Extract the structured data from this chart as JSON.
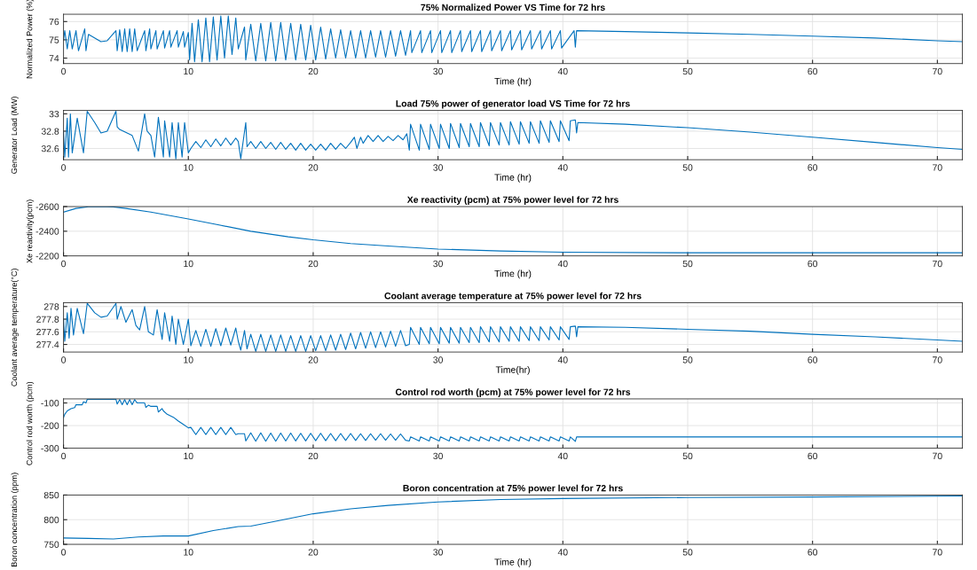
{
  "chart_data": [
    {
      "type": "line",
      "title": "75% Normalized Power VS Time for 72 hrs",
      "xlabel": "Time (hr)",
      "ylabel": "Normalized Power (%)",
      "xlim": [
        0,
        72
      ],
      "xticks": [
        0,
        10,
        20,
        30,
        40,
        50,
        60,
        70
      ],
      "ylim": [
        73.7,
        76.4
      ],
      "yticks": [
        74,
        75,
        76
      ],
      "grid": true,
      "series": [
        {
          "color": "#0072bd",
          "x": [
            0,
            0.1,
            0.3,
            0.5,
            0.7,
            1.0,
            1.2,
            1.7,
            1.8,
            2.0,
            3.0,
            3.5,
            4.2,
            4.3,
            4.5,
            4.7,
            4.9,
            5.1,
            5.3,
            5.5,
            5.7,
            5.9,
            6.5,
            6.6,
            6.9,
            7.0,
            7.4,
            7.5,
            8.0,
            8.1,
            8.5,
            8.6,
            9.1,
            9.2,
            9.6,
            9.7,
            10.0,
            10.1,
            10.3,
            10.5,
            10.8,
            11.1,
            11.4,
            11.7,
            12.0,
            12.3,
            12.6,
            12.9,
            13.2,
            13.5,
            13.8,
            14.0,
            14.5,
            14.6,
            15.0,
            15.4,
            15.8,
            16.2,
            16.6,
            17.0,
            17.4,
            17.8,
            18.2,
            18.6,
            19.0,
            19.4,
            19.8,
            20.2,
            20.6,
            21.0,
            21.4,
            21.8,
            22.2,
            22.6,
            23.0,
            23.4,
            23.8,
            24.2,
            24.6,
            25.0,
            25.4,
            25.8,
            26.2,
            26.6,
            27.0,
            27.4,
            27.8,
            27.9,
            28.6,
            28.7,
            29.4,
            29.5,
            30.2,
            30.3,
            31.0,
            31.1,
            31.8,
            31.9,
            32.6,
            32.7,
            33.4,
            33.5,
            34.2,
            34.3,
            35.0,
            35.1,
            35.8,
            35.9,
            36.6,
            36.7,
            37.4,
            37.5,
            38.2,
            38.3,
            39.0,
            39.1,
            39.8,
            39.9,
            40.9,
            41.0,
            41.1,
            45,
            50,
            55,
            60,
            65,
            70,
            72
          ],
          "values": [
            75.0,
            75.5,
            74.5,
            75.5,
            74.5,
            75.5,
            74.4,
            75.6,
            74.4,
            75.3,
            74.9,
            74.95,
            75.5,
            74.4,
            75.55,
            74.35,
            75.6,
            74.35,
            75.6,
            74.35,
            75.6,
            74.4,
            75.5,
            74.4,
            75.6,
            74.5,
            75.5,
            74.5,
            75.5,
            74.55,
            75.5,
            74.6,
            75.5,
            74.6,
            75.45,
            74.6,
            75.4,
            73.9,
            75.9,
            73.8,
            76.1,
            73.8,
            76.2,
            73.8,
            76.25,
            73.9,
            76.3,
            74.0,
            76.3,
            74.2,
            76.2,
            74.5,
            75.7,
            73.9,
            75.85,
            73.85,
            75.9,
            73.85,
            75.95,
            73.85,
            75.95,
            73.9,
            75.9,
            73.9,
            75.85,
            73.9,
            75.8,
            73.9,
            75.7,
            73.95,
            75.6,
            74.0,
            75.55,
            74.0,
            75.5,
            74.0,
            75.5,
            74.0,
            75.5,
            74.05,
            75.5,
            74.05,
            75.5,
            74.1,
            75.5,
            74.15,
            75.5,
            74.3,
            75.5,
            74.3,
            75.5,
            74.3,
            75.5,
            74.3,
            75.5,
            74.3,
            75.5,
            74.35,
            75.5,
            74.35,
            75.5,
            74.35,
            75.5,
            74.4,
            75.5,
            74.4,
            75.5,
            74.45,
            75.5,
            74.45,
            75.5,
            74.5,
            75.5,
            74.5,
            75.5,
            74.5,
            75.5,
            74.55,
            75.5,
            74.6,
            75.5,
            75.45,
            75.38,
            75.3,
            75.2,
            75.1,
            74.95,
            74.9
          ]
        }
      ]
    },
    {
      "type": "line",
      "title": "Load 75% power of generator load VS Time for 72 hrs",
      "xlabel": "Time (hr)",
      "ylabel": "Generator Load (MW)",
      "xlim": [
        0,
        72
      ],
      "xticks": [
        0,
        10,
        20,
        30,
        40,
        50,
        60,
        70
      ],
      "ylim": [
        32.47,
        33.04
      ],
      "yticks": [
        32.6,
        32.8,
        33
      ],
      "grid": true,
      "series": [
        {
          "color": "#0072bd",
          "x": [
            0,
            0.1,
            0.3,
            0.4,
            0.55,
            0.7,
            1.1,
            1.6,
            1.9,
            2.5,
            3.0,
            3.5,
            4.2,
            4.3,
            4.5,
            5.5,
            6.0,
            6.5,
            6.7,
            7.0,
            7.3,
            7.6,
            8.0,
            8.1,
            8.5,
            8.7,
            9.0,
            9.2,
            9.5,
            9.7,
            10.0,
            10.2,
            10.6,
            11.0,
            11.4,
            11.8,
            12.2,
            12.6,
            13.0,
            13.4,
            13.8,
            14.0,
            14.2,
            14.6,
            14.7,
            15.0,
            15.4,
            15.8,
            16.2,
            16.6,
            17.0,
            17.4,
            17.8,
            18.2,
            18.6,
            19.0,
            19.4,
            19.8,
            20.2,
            20.6,
            21.0,
            21.4,
            21.8,
            22.2,
            22.6,
            23.0,
            23.3,
            23.5,
            23.8,
            24.0,
            24.4,
            24.8,
            25.2,
            25.6,
            26.0,
            26.4,
            26.8,
            27.2,
            27.5,
            27.7,
            27.8,
            28.5,
            28.6,
            29.3,
            29.4,
            30.1,
            30.2,
            30.9,
            31.0,
            31.7,
            31.8,
            32.5,
            32.6,
            33.3,
            33.4,
            34.1,
            34.2,
            34.9,
            35.0,
            35.7,
            35.8,
            36.5,
            36.6,
            37.3,
            37.4,
            38.1,
            38.2,
            38.9,
            39.0,
            39.7,
            39.8,
            40.5,
            40.6,
            41.0,
            41.1,
            41.2,
            45,
            50,
            55,
            60,
            65,
            70,
            72
          ],
          "values": [
            32.8,
            32.5,
            32.95,
            32.5,
            33.0,
            32.55,
            32.95,
            32.55,
            33.03,
            32.9,
            32.78,
            32.8,
            33.03,
            32.85,
            32.82,
            32.75,
            32.57,
            33.0,
            32.8,
            32.75,
            32.5,
            32.96,
            32.5,
            32.92,
            32.5,
            32.9,
            32.48,
            32.9,
            32.5,
            32.9,
            32.55,
            32.6,
            32.68,
            32.61,
            32.7,
            32.62,
            32.71,
            32.63,
            32.72,
            32.64,
            32.72,
            32.68,
            32.48,
            32.9,
            32.62,
            32.68,
            32.6,
            32.68,
            32.6,
            32.67,
            32.59,
            32.67,
            32.59,
            32.66,
            32.58,
            32.66,
            32.58,
            32.65,
            32.58,
            32.65,
            32.58,
            32.66,
            32.59,
            32.66,
            32.6,
            32.67,
            32.73,
            32.6,
            32.73,
            32.66,
            32.75,
            32.68,
            32.75,
            32.68,
            32.74,
            32.69,
            32.75,
            32.7,
            32.77,
            32.58,
            32.88,
            32.58,
            32.88,
            32.59,
            32.88,
            32.6,
            32.88,
            32.6,
            32.89,
            32.61,
            32.89,
            32.62,
            32.89,
            32.62,
            32.9,
            32.63,
            32.9,
            32.64,
            32.9,
            32.64,
            32.91,
            32.65,
            32.91,
            32.66,
            32.91,
            32.66,
            32.92,
            32.67,
            32.92,
            32.68,
            32.92,
            32.69,
            32.92,
            32.93,
            32.78,
            32.9,
            32.88,
            32.84,
            32.79,
            32.73,
            32.67,
            32.61,
            32.59
          ]
        }
      ]
    },
    {
      "type": "line",
      "title": "Xe reactivity (pcm) at 75% power level for 72 hrs",
      "xlabel": "Time (hr)",
      "ylabel": "Xe reactivity(pcm)",
      "xlim": [
        0,
        72
      ],
      "xticks": [
        0,
        10,
        20,
        30,
        40,
        50,
        60,
        70
      ],
      "ylim": [
        -2200,
        -2600
      ],
      "yticks": [
        -2600,
        -2400,
        -2200
      ],
      "grid": true,
      "series": [
        {
          "color": "#0072bd",
          "x": [
            0,
            1,
            2,
            3,
            4,
            5,
            7,
            10,
            12,
            15,
            18,
            20,
            23,
            26,
            30,
            35,
            40,
            50,
            60,
            72
          ],
          "values": [
            -2555,
            -2585,
            -2598,
            -2600,
            -2597,
            -2585,
            -2555,
            -2500,
            -2460,
            -2400,
            -2355,
            -2330,
            -2300,
            -2280,
            -2255,
            -2240,
            -2230,
            -2225,
            -2225,
            -2225
          ]
        }
      ]
    },
    {
      "type": "line",
      "title": "Coolant average temperature at 75% power level for 72 hrs",
      "xlabel": "Time(hr)",
      "ylabel": "Coolant average temperature(°C)",
      "xlim": [
        0,
        72
      ],
      "xticks": [
        0,
        10,
        20,
        30,
        40,
        50,
        60,
        70
      ],
      "ylim": [
        277.28,
        278.06
      ],
      "yticks": [
        277.4,
        277.6,
        277.8,
        278
      ],
      "grid": true,
      "series": [
        {
          "color": "#0072bd",
          "x": [
            0,
            0.1,
            0.3,
            0.45,
            0.6,
            0.8,
            1.1,
            1.6,
            1.9,
            2.5,
            3.0,
            3.5,
            4.2,
            4.3,
            4.6,
            5.0,
            5.5,
            5.8,
            6.1,
            6.5,
            6.8,
            7.2,
            7.5,
            7.9,
            8.1,
            8.5,
            8.7,
            9.0,
            9.2,
            9.6,
            10.0,
            10.2,
            10.6,
            11.0,
            11.4,
            11.8,
            12.2,
            12.6,
            13.0,
            13.4,
            13.8,
            14.0,
            14.2,
            14.5,
            14.7,
            15.0,
            15.4,
            15.8,
            16.2,
            16.6,
            17.0,
            17.4,
            17.8,
            18.2,
            18.6,
            19.0,
            19.4,
            19.8,
            20.2,
            20.6,
            21.0,
            21.4,
            21.8,
            22.2,
            22.6,
            23.0,
            23.4,
            23.8,
            24.2,
            24.6,
            25.0,
            25.4,
            25.8,
            26.2,
            26.6,
            27.0,
            27.4,
            27.7,
            27.8,
            28.5,
            28.6,
            29.3,
            29.4,
            30.1,
            30.2,
            30.9,
            31.0,
            31.7,
            31.8,
            32.5,
            32.6,
            33.3,
            33.4,
            34.1,
            34.2,
            34.9,
            35.0,
            35.7,
            35.8,
            36.5,
            36.6,
            37.3,
            37.4,
            38.1,
            38.2,
            38.9,
            39.0,
            39.7,
            39.8,
            40.5,
            40.6,
            41.0,
            41.1,
            41.2,
            45,
            50,
            55,
            60,
            65,
            70,
            72
          ],
          "values": [
            277.8,
            277.45,
            277.9,
            277.5,
            277.97,
            277.55,
            277.97,
            277.57,
            278.05,
            277.9,
            277.83,
            277.85,
            278.05,
            277.8,
            278.0,
            277.75,
            277.95,
            277.7,
            277.63,
            278.0,
            277.6,
            277.55,
            277.95,
            277.48,
            277.9,
            277.45,
            277.85,
            277.4,
            277.8,
            277.4,
            277.8,
            277.38,
            277.62,
            277.37,
            277.64,
            277.37,
            277.65,
            277.38,
            277.66,
            277.39,
            277.66,
            277.45,
            277.31,
            277.62,
            277.33,
            277.56,
            277.29,
            277.56,
            277.29,
            277.55,
            277.29,
            277.55,
            277.29,
            277.54,
            277.29,
            277.54,
            277.29,
            277.54,
            277.3,
            277.54,
            277.3,
            277.55,
            277.31,
            277.56,
            277.32,
            277.58,
            277.33,
            277.59,
            277.34,
            277.6,
            277.35,
            277.6,
            277.36,
            277.61,
            277.37,
            277.62,
            277.38,
            277.4,
            277.67,
            277.4,
            277.67,
            277.41,
            277.67,
            277.41,
            277.67,
            277.42,
            277.67,
            277.42,
            277.67,
            277.43,
            277.67,
            277.43,
            277.68,
            277.44,
            277.68,
            277.44,
            277.68,
            277.45,
            277.68,
            277.45,
            277.68,
            277.46,
            277.68,
            277.46,
            277.68,
            277.47,
            277.68,
            277.47,
            277.68,
            277.48,
            277.68,
            277.69,
            277.52,
            277.68,
            277.67,
            277.64,
            277.61,
            277.56,
            277.52,
            277.47,
            277.45
          ]
        }
      ]
    },
    {
      "type": "line",
      "title": "Control rod worth (pcm) at 75% power level for 72 hrs",
      "ylabel": "Control rod worth (pcm)",
      "xlim": [
        0,
        72
      ],
      "xticks": [
        0,
        10,
        20,
        30,
        40,
        50,
        60,
        70
      ],
      "ylim": [
        -300,
        -82
      ],
      "yticks": [
        -300,
        -200,
        -100
      ],
      "grid": true,
      "series": [
        {
          "color": "#0072bd",
          "x": [
            0,
            0.1,
            0.3,
            0.6,
            0.9,
            1.0,
            1.5,
            1.6,
            1.8,
            1.9,
            2.0,
            4.2,
            4.3,
            4.5,
            4.7,
            4.9,
            5.1,
            5.3,
            5.5,
            5.7,
            5.9,
            6.5,
            6.6,
            6.8,
            7.0,
            7.5,
            7.6,
            7.9,
            8.0,
            8.3,
            8.8,
            9.2,
            9.6,
            10.0,
            10.2,
            10.6,
            11.0,
            11.4,
            11.8,
            12.2,
            12.6,
            13.0,
            13.4,
            13.8,
            14.0,
            14.5,
            14.6,
            15.0,
            15.4,
            15.8,
            16.2,
            16.6,
            17.0,
            17.4,
            17.8,
            18.2,
            18.6,
            19.0,
            19.4,
            19.8,
            20.2,
            20.6,
            21.0,
            21.4,
            21.8,
            22.2,
            22.6,
            23.0,
            23.4,
            23.8,
            24.2,
            24.6,
            25.0,
            25.4,
            25.8,
            26.2,
            26.6,
            27.0,
            27.4,
            27.7,
            27.8,
            28.5,
            28.6,
            29.3,
            29.4,
            30.1,
            30.2,
            30.9,
            31.0,
            31.7,
            31.8,
            32.5,
            32.6,
            33.3,
            33.4,
            34.1,
            34.2,
            34.9,
            35.0,
            35.7,
            35.8,
            36.5,
            36.6,
            37.3,
            37.4,
            38.1,
            38.2,
            38.9,
            39.0,
            39.7,
            39.8,
            40.5,
            40.6,
            41.0,
            41.1,
            45,
            60,
            72
          ],
          "values": [
            -165,
            -150,
            -135,
            -125,
            -120,
            -108,
            -108,
            -95,
            -100,
            -84,
            -84,
            -84,
            -105,
            -85,
            -108,
            -85,
            -108,
            -85,
            -108,
            -85,
            -100,
            -100,
            -120,
            -110,
            -115,
            -115,
            -140,
            -125,
            -135,
            -150,
            -163,
            -180,
            -195,
            -210,
            -208,
            -240,
            -208,
            -240,
            -208,
            -240,
            -208,
            -240,
            -208,
            -240,
            -236,
            -236,
            -268,
            -232,
            -269,
            -232,
            -269,
            -233,
            -269,
            -233,
            -268,
            -233,
            -268,
            -234,
            -268,
            -234,
            -267,
            -234,
            -267,
            -235,
            -267,
            -235,
            -266,
            -235,
            -266,
            -236,
            -266,
            -236,
            -265,
            -236,
            -265,
            -237,
            -265,
            -237,
            -265,
            -268,
            -250,
            -268,
            -250,
            -268,
            -250,
            -268,
            -250,
            -268,
            -250,
            -268,
            -250,
            -268,
            -250,
            -268,
            -250,
            -268,
            -250,
            -268,
            -250,
            -268,
            -250,
            -268,
            -250,
            -268,
            -250,
            -268,
            -250,
            -268,
            -250,
            -268,
            -250,
            -268,
            -250,
            -270,
            -250,
            -250,
            -250,
            -250
          ]
        }
      ]
    },
    {
      "type": "line",
      "title": "Boron concentration at 75% power level for 72 hrs",
      "xlabel": "Time (hr)",
      "ylabel": "Boron concentration (ppm)",
      "xlim": [
        0,
        72
      ],
      "xticks": [
        0,
        10,
        20,
        30,
        40,
        50,
        60,
        70
      ],
      "ylim": [
        750,
        850
      ],
      "yticks": [
        750,
        800,
        850
      ],
      "grid": true,
      "series": [
        {
          "color": "#0072bd",
          "x": [
            0,
            2,
            4,
            6,
            8,
            10,
            12,
            14,
            15,
            17,
            20,
            23,
            26,
            30,
            35,
            40,
            50,
            60,
            72
          ],
          "values": [
            763,
            762,
            761,
            765,
            767,
            767,
            778,
            786,
            787,
            797,
            812,
            822,
            829,
            836,
            841,
            843,
            845,
            846,
            848
          ]
        }
      ]
    }
  ]
}
